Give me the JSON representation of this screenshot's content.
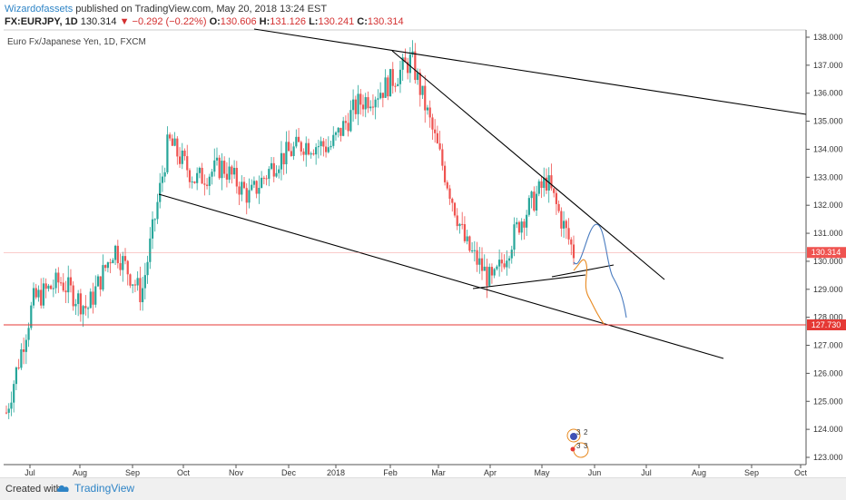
{
  "header": {
    "author": "Wizardofassets",
    "published_text": " published on TradingView.com, May 20, 2018 13:24 EST",
    "symbol": "FX:EURJPY, 1D",
    "last": "130.314",
    "change": "−0.292 (−0.22%)",
    "o_label": "O:",
    "o_value": "130.606",
    "h_label": "H:",
    "h_value": "131.126",
    "l_label": "L:",
    "l_value": "130.241",
    "c_label": "C:",
    "c_value": "130.314"
  },
  "chart_data": {
    "type": "candlestick",
    "title": "Euro Fx/Japanese Yen, 1D, FXCM",
    "y_ticks": [
      "123.000",
      "124.000",
      "125.000",
      "126.000",
      "127.000",
      "128.000",
      "129.000",
      "130.000",
      "131.000",
      "132.000",
      "133.000",
      "134.000",
      "135.000",
      "136.000",
      "137.000",
      "138.000"
    ],
    "x_ticks": [
      "Jul",
      "Aug",
      "Sep",
      "Oct",
      "Nov",
      "Dec",
      "2018",
      "Feb",
      "Mar",
      "Apr",
      "May",
      "Jun",
      "Jul",
      "Aug",
      "Sep",
      "Oct"
    ],
    "ylim": [
      123,
      138
    ],
    "price_labels": [
      {
        "text": "130.314",
        "value": 130.314,
        "color": "#ef5350"
      },
      {
        "text": "127.730",
        "value": 127.73,
        "color": "#e53935"
      }
    ],
    "monthly_path": [
      124.6,
      128.6,
      129.3,
      128.3,
      130.5,
      128.8,
      134.3,
      132.9,
      133.4,
      132.3,
      133.6,
      134.2,
      134.1,
      135.6,
      136.2,
      137.2,
      133.9,
      130.6,
      129.2,
      131.4,
      132.9,
      130.3
    ],
    "colors": {
      "up": "#26a69a",
      "down": "#ef5350",
      "trend": "#000000",
      "projection_blue": "#4a7cc0",
      "projection_orange": "#e8891f"
    },
    "annotation_numbers": [
      "3",
      "2",
      "3",
      "3"
    ]
  },
  "footer": {
    "created_with": "Created with",
    "brand": "TradingView"
  }
}
